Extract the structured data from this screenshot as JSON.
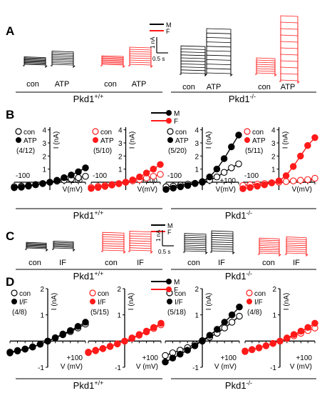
{
  "colors": {
    "male": "#000000",
    "female": "#ff1a1a",
    "open": "#ffffff"
  },
  "panels": {
    "A": "A",
    "B": "B",
    "C": "C",
    "D": "D"
  },
  "genotypes": {
    "wt_base": "Pkd1",
    "wt_sup": "+/+",
    "ko_base": "Pkd1",
    "ko_sup": "-/-"
  },
  "legend": {
    "male": "M",
    "female": "F"
  },
  "scalebar": {
    "current": "1 nA",
    "time": "0.5 s"
  },
  "panel_a": {
    "labels": [
      "con",
      "ATP",
      "con",
      "ATP",
      "con",
      "ATP",
      "con",
      "ATP"
    ]
  },
  "panel_c": {
    "labels": [
      "con",
      "IF",
      "con",
      "IF",
      "con",
      "IF",
      "con",
      "IF"
    ]
  },
  "chart_data": [
    {
      "panel": "B",
      "type": "scatter",
      "genotype": "Pkd1+/+",
      "sex": "M",
      "ylabel": "I (nA)",
      "xlabel": "V(mV)",
      "xtick_left": "-100",
      "xtick_right": "+100",
      "yticks": [
        "4",
        "3",
        "2",
        "1"
      ],
      "ylim": [
        -0.6,
        4.2
      ],
      "xlim": [
        -100,
        100
      ],
      "legend_control": "con",
      "legend_treatment": "ATP",
      "n": "(4/12)",
      "x": [
        -100,
        -80,
        -60,
        -40,
        -20,
        0,
        20,
        40,
        60,
        80,
        100
      ],
      "series": [
        {
          "name": "con",
          "filled": false,
          "values": [
            -0.35,
            -0.3,
            -0.25,
            -0.18,
            -0.1,
            0,
            0.08,
            0.16,
            0.25,
            0.35,
            0.45
          ]
        },
        {
          "name": "ATP",
          "filled": true,
          "values": [
            -0.42,
            -0.38,
            -0.3,
            -0.2,
            -0.1,
            0,
            0.15,
            0.35,
            0.55,
            0.8,
            1.1
          ]
        }
      ]
    },
    {
      "panel": "B",
      "type": "scatter",
      "genotype": "Pkd1+/+",
      "sex": "F",
      "ylabel": "I (nA)",
      "xlabel": "V(mV)",
      "xtick_left": "-100",
      "xtick_right": "+100",
      "yticks": [
        "4",
        "3",
        "2",
        "1"
      ],
      "ylim": [
        -0.6,
        4.2
      ],
      "xlim": [
        -100,
        100
      ],
      "legend_control": "con",
      "legend_treatment": "ATP",
      "n": "(5/10)",
      "x": [
        -100,
        -80,
        -60,
        -40,
        -20,
        0,
        20,
        40,
        60,
        80,
        100
      ],
      "series": [
        {
          "name": "con",
          "filled": false,
          "values": [
            -0.4,
            -0.32,
            -0.25,
            -0.18,
            -0.1,
            0,
            0.1,
            0.2,
            0.32,
            0.45,
            0.6
          ]
        },
        {
          "name": "ATP",
          "filled": true,
          "values": [
            -0.48,
            -0.4,
            -0.32,
            -0.22,
            -0.12,
            0,
            0.18,
            0.4,
            0.7,
            1.0,
            1.35
          ]
        }
      ]
    },
    {
      "panel": "B",
      "type": "scatter",
      "genotype": "Pkd1-/-",
      "sex": "M",
      "ylabel": "I (nA)",
      "xlabel": "V(mV)",
      "xtick_left": "-100",
      "xtick_right": "+100",
      "yticks": [
        "4",
        "3",
        "2",
        "1"
      ],
      "ylim": [
        -0.6,
        4.2
      ],
      "xlim": [
        -100,
        100
      ],
      "legend_control": "con",
      "legend_treatment": "ATP",
      "n": "(5/20)",
      "x": [
        -100,
        -80,
        -60,
        -40,
        -20,
        0,
        20,
        40,
        60,
        80,
        100
      ],
      "series": [
        {
          "name": "con",
          "filled": false,
          "values": [
            -0.35,
            -0.3,
            -0.22,
            -0.15,
            -0.08,
            0,
            0.15,
            0.4,
            0.75,
            1.1,
            1.4
          ]
        },
        {
          "name": "ATP",
          "filled": true,
          "values": [
            -0.55,
            -0.45,
            -0.35,
            -0.25,
            -0.1,
            0.05,
            0.4,
            1.0,
            1.8,
            2.7,
            3.6
          ]
        }
      ]
    },
    {
      "panel": "B",
      "type": "scatter",
      "genotype": "Pkd1-/-",
      "sex": "F",
      "ylabel": "I (nA)",
      "xlabel": "V(mV)",
      "xtick_left": "-100",
      "xtick_right": "+100",
      "yticks": [
        "4",
        "3",
        "2",
        "1"
      ],
      "ylim": [
        -0.6,
        4.2
      ],
      "xlim": [
        -100,
        100
      ],
      "legend_control": "con",
      "legend_treatment": "ATP",
      "n": "(5/11)",
      "x": [
        -100,
        -80,
        -60,
        -40,
        -20,
        0,
        20,
        40,
        60,
        80,
        100
      ],
      "series": [
        {
          "name": "con",
          "filled": false,
          "values": [
            -0.25,
            -0.2,
            -0.15,
            -0.1,
            -0.05,
            0,
            0.05,
            0.1,
            0.15,
            0.2,
            0.3
          ]
        },
        {
          "name": "ATP",
          "filled": true,
          "values": [
            -0.5,
            -0.4,
            -0.3,
            -0.2,
            -0.05,
            0.1,
            0.5,
            1.2,
            2.0,
            2.8,
            3.4
          ]
        }
      ]
    },
    {
      "panel": "D",
      "type": "scatter",
      "genotype": "Pkd1+/+",
      "sex": "M",
      "ylabel": "I (nA)",
      "xlabel": "V (mV)",
      "xtick_left": "",
      "xtick_right": "+100",
      "yticks": [
        "2",
        "1",
        "-1"
      ],
      "ylim": [
        -1.0,
        2.0
      ],
      "xlim": [
        -100,
        100
      ],
      "legend_control": "con",
      "legend_treatment": "I/F",
      "n": "(4/8)",
      "x": [
        -100,
        -80,
        -60,
        -40,
        -20,
        0,
        20,
        40,
        60,
        80,
        100
      ],
      "series": [
        {
          "name": "con",
          "filled": false,
          "values": [
            -0.42,
            -0.36,
            -0.3,
            -0.22,
            -0.12,
            0,
            0.12,
            0.24,
            0.36,
            0.5,
            0.65
          ]
        },
        {
          "name": "I/F",
          "filled": true,
          "values": [
            -0.45,
            -0.38,
            -0.31,
            -0.23,
            -0.12,
            0,
            0.13,
            0.27,
            0.4,
            0.56,
            0.72
          ]
        }
      ]
    },
    {
      "panel": "D",
      "type": "scatter",
      "genotype": "Pkd1+/+",
      "sex": "F",
      "ylabel": "I (nA)",
      "xlabel": "V (mV)",
      "xtick_left": "",
      "xtick_right": "+100",
      "yticks": [
        "2",
        "1",
        "-1"
      ],
      "ylim": [
        -1.0,
        2.0
      ],
      "xlim": [
        -100,
        100
      ],
      "legend_control": "con",
      "legend_treatment": "I/F",
      "n": "(5/15)",
      "x": [
        -100,
        -80,
        -60,
        -40,
        -20,
        0,
        20,
        40,
        60,
        80,
        100
      ],
      "series": [
        {
          "name": "con",
          "filled": false,
          "values": [
            -0.42,
            -0.35,
            -0.28,
            -0.2,
            -0.1,
            0,
            0.1,
            0.22,
            0.35,
            0.48,
            0.62
          ]
        },
        {
          "name": "I/F",
          "filled": true,
          "values": [
            -0.44,
            -0.37,
            -0.29,
            -0.21,
            -0.11,
            0,
            0.12,
            0.25,
            0.38,
            0.52,
            0.68
          ]
        }
      ]
    },
    {
      "panel": "D",
      "type": "scatter",
      "genotype": "Pkd1-/-",
      "sex": "M",
      "ylabel": "I (nA)",
      "xlabel": "V (mV)",
      "xtick_left": "",
      "xtick_right": "+100",
      "yticks": [
        "2",
        "1",
        "-1"
      ],
      "ylim": [
        -1.0,
        2.0
      ],
      "xlim": [
        -100,
        100
      ],
      "legend_control": "con",
      "legend_treatment": "I/F",
      "n": "(5/18)",
      "x": [
        -100,
        -80,
        -60,
        -40,
        -20,
        0,
        20,
        40,
        60,
        80,
        100
      ],
      "series": [
        {
          "name": "con",
          "filled": false,
          "values": [
            -0.55,
            -0.45,
            -0.35,
            -0.25,
            -0.12,
            0,
            0.15,
            0.3,
            0.5,
            0.72,
            0.95
          ]
        },
        {
          "name": "I/F",
          "filled": true,
          "values": [
            -0.8,
            -0.65,
            -0.5,
            -0.35,
            -0.18,
            0.02,
            0.22,
            0.45,
            0.72,
            1.0,
            1.3
          ]
        }
      ]
    },
    {
      "panel": "D",
      "type": "scatter",
      "genotype": "Pkd1-/-",
      "sex": "F",
      "ylabel": "I (nA)",
      "xlabel": "V (mV)",
      "xtick_left": "",
      "xtick_right": "+100",
      "yticks": [
        "2",
        "1",
        "-1"
      ],
      "ylim": [
        -1.0,
        2.0
      ],
      "xlim": [
        -100,
        100
      ],
      "legend_control": "con",
      "legend_treatment": "I/F",
      "n": "(4/8)",
      "x": [
        -100,
        -80,
        -60,
        -40,
        -20,
        0,
        20,
        40,
        60,
        80,
        100
      ],
      "series": [
        {
          "name": "con",
          "filled": false,
          "values": [
            -0.38,
            -0.32,
            -0.25,
            -0.18,
            -0.09,
            0,
            0.1,
            0.2,
            0.3,
            0.4,
            0.5
          ]
        },
        {
          "name": "I/F",
          "filled": true,
          "values": [
            -0.4,
            -0.33,
            -0.26,
            -0.18,
            -0.09,
            0,
            0.12,
            0.25,
            0.38,
            0.52,
            0.68
          ]
        }
      ]
    }
  ]
}
